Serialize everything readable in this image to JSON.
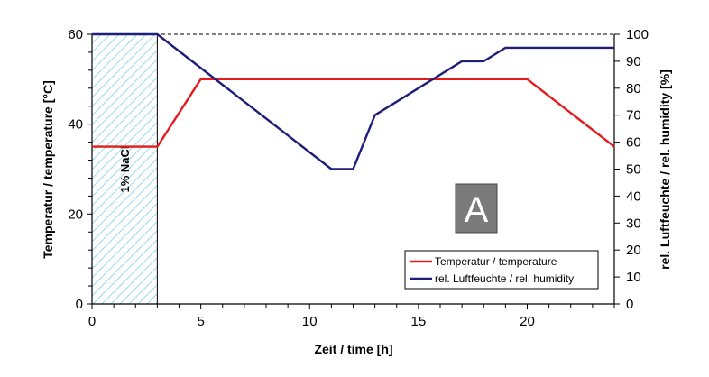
{
  "chart_data": {
    "type": "line",
    "xlabel": "Zeit / time [h]",
    "ylabel_left": "Temperatur / temperature [°C]",
    "ylabel_right": "rel. Luftfeuchte / rel. humidity [%]",
    "xlim": [
      0,
      24
    ],
    "ylim_left": [
      0,
      60
    ],
    "ylim_right": [
      0,
      100
    ],
    "x_ticks": [
      "0",
      "5",
      "10",
      "15",
      "20"
    ],
    "y_left_ticks": [
      "0",
      "20",
      "40",
      "60"
    ],
    "y_right_ticks": [
      "0",
      "10",
      "20",
      "30",
      "40",
      "50",
      "60",
      "70",
      "80",
      "90",
      "100"
    ],
    "series": [
      {
        "name": "Temperatur / temperature",
        "axis": "left",
        "color": "#e41a1c",
        "points": [
          [
            0,
            35
          ],
          [
            3,
            35
          ],
          [
            5,
            50
          ],
          [
            20,
            50
          ],
          [
            24,
            35
          ]
        ]
      },
      {
        "name": "rel. Luftfeuchte / rel. humidity",
        "axis": "right",
        "color": "#1f1f7a",
        "points": [
          [
            0,
            100
          ],
          [
            3,
            100
          ],
          [
            11,
            50
          ],
          [
            12,
            50
          ],
          [
            13,
            70
          ],
          [
            17,
            90
          ],
          [
            18,
            90
          ],
          [
            19,
            95
          ],
          [
            24,
            95
          ]
        ]
      }
    ],
    "shaded_region": {
      "x_from": 0,
      "x_to": 3,
      "label": "1% NaCl",
      "pattern_color": "#bfe8f5"
    },
    "reference_line": {
      "value_right": 100,
      "style": "dashed"
    },
    "legend_position": "bottom-right",
    "panel_label": "A",
    "panel_label_bg": "#7a7a7a"
  }
}
